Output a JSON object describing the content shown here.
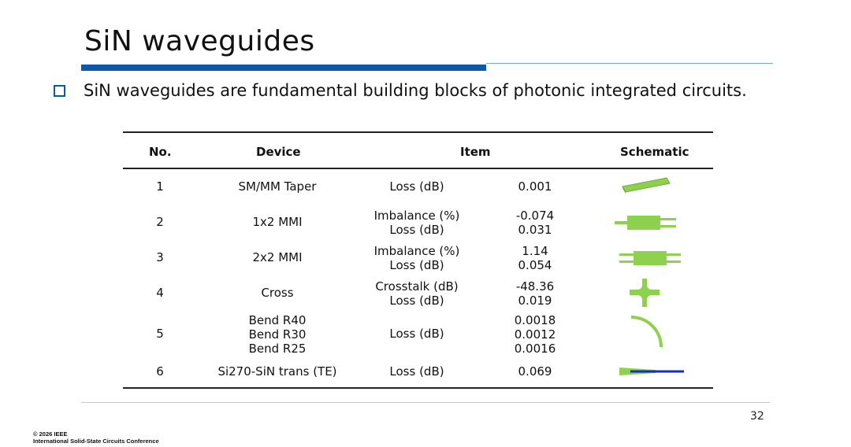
{
  "slide": {
    "title": "SiN waveguides",
    "bullet": "SiN waveguides are fundamental building blocks of photonic integrated circuits.",
    "page_number": "32",
    "footer_line1": "© 2026 IEEE",
    "footer_line2": "International Solid-State Circuits Conference",
    "accent_color": "#1157a8",
    "schematic_color": "#8ed14f"
  },
  "table": {
    "headers": {
      "no": "No.",
      "device": "Device",
      "item": "Item",
      "schematic": "Schematic"
    },
    "rows": [
      {
        "no": "1",
        "device": [
          "SM/MM Taper"
        ],
        "item": [
          "Loss (dB)"
        ],
        "value": [
          "0.001"
        ],
        "icon": "taper-icon"
      },
      {
        "no": "2",
        "device": [
          "1x2 MMI"
        ],
        "item": [
          "Imbalance (%)",
          "Loss (dB)"
        ],
        "value": [
          "-0.074",
          "0.031"
        ],
        "icon": "mmi-1x2-icon"
      },
      {
        "no": "3",
        "device": [
          "2x2 MMI"
        ],
        "item": [
          "Imbalance (%)",
          "Loss (dB)"
        ],
        "value": [
          "1.14",
          "0.054"
        ],
        "icon": "mmi-2x2-icon"
      },
      {
        "no": "4",
        "device": [
          "Cross"
        ],
        "item": [
          "Crosstalk (dB)",
          "Loss (dB)"
        ],
        "value": [
          "-48.36",
          "0.019"
        ],
        "icon": "crossing-icon"
      },
      {
        "no": "5",
        "device": [
          "Bend R40",
          "Bend R30",
          "Bend R25"
        ],
        "item": [
          "Loss (dB)"
        ],
        "value": [
          "0.0018",
          "0.0012",
          "0.0016"
        ],
        "icon": "bend-icon"
      },
      {
        "no": "6",
        "device": [
          "Si270-SiN trans (TE)"
        ],
        "item": [
          "Loss (dB)"
        ],
        "value": [
          "0.069"
        ],
        "icon": "transition-icon"
      }
    ]
  }
}
